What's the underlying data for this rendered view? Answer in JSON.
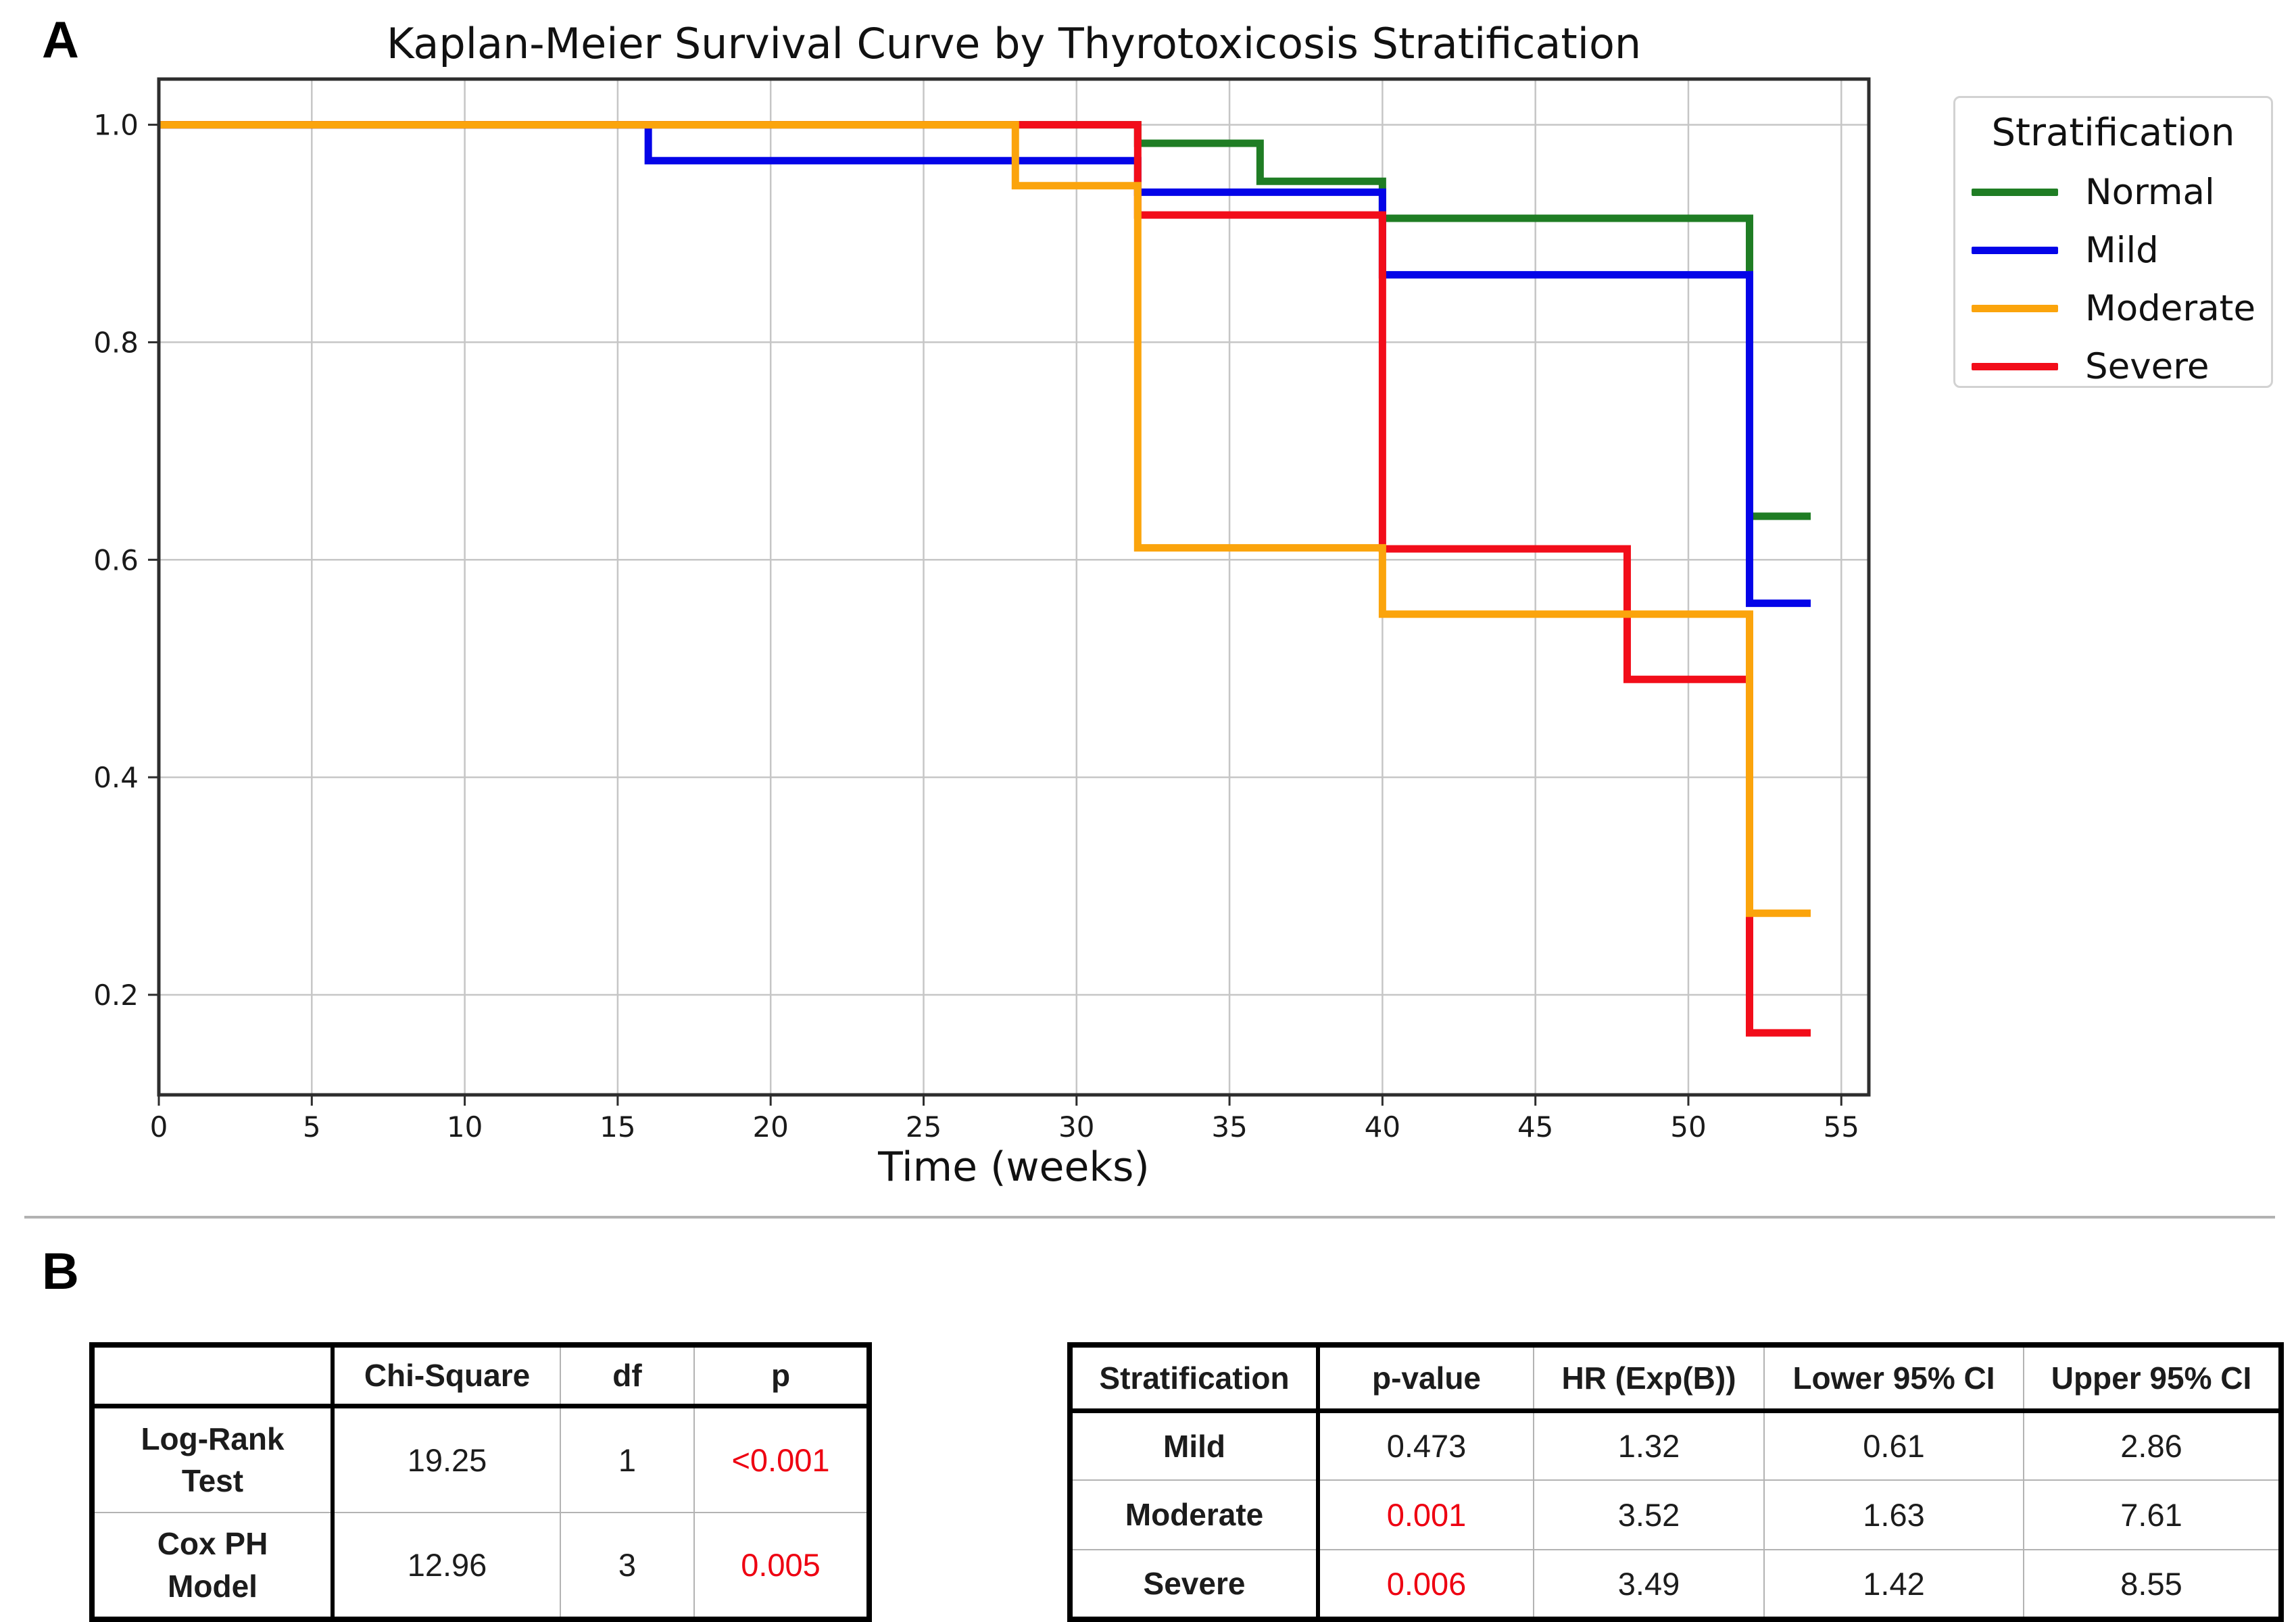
{
  "panel_a": {
    "label": "A"
  },
  "panel_b": {
    "label": "B"
  },
  "chart_data": {
    "type": "line",
    "step": true,
    "title": "Kaplan-Meier Survival Curve by Thyrotoxicosis Stratification",
    "xlabel": "Time (weeks)",
    "ylabel": "",
    "xlim": [
      0,
      55.9
    ],
    "ylim": [
      0.108,
      1.042
    ],
    "x_ticks": [
      0,
      5,
      10,
      15,
      20,
      25,
      30,
      35,
      40,
      45,
      50,
      55
    ],
    "y_ticks": [
      {
        "v": 1.0,
        "label": "1.0"
      },
      {
        "v": 0.8,
        "label": "0.8"
      },
      {
        "v": 0.6,
        "label": "0.6"
      },
      {
        "v": 0.4,
        "label": "0.4"
      },
      {
        "v": 0.2,
        "label": "0.2"
      }
    ],
    "grid": true,
    "legend": {
      "title": "Stratification",
      "position": "upper-right-outside"
    },
    "series": [
      {
        "name": "Normal",
        "color": "#1f7d24",
        "steps": [
          [
            0,
            1.0
          ],
          [
            32,
            0.983
          ],
          [
            36,
            0.948
          ],
          [
            40,
            0.914
          ],
          [
            52,
            0.64
          ]
        ],
        "end_x": 54
      },
      {
        "name": "Mild",
        "color": "#0404e8",
        "steps": [
          [
            0,
            1.0
          ],
          [
            16,
            0.967
          ],
          [
            32,
            0.938
          ],
          [
            40,
            0.862
          ],
          [
            52,
            0.56
          ]
        ],
        "end_x": 54
      },
      {
        "name": "Moderate",
        "color": "#fba40c",
        "steps": [
          [
            0,
            1.0
          ],
          [
            28,
            0.944
          ],
          [
            32,
            0.611
          ],
          [
            40,
            0.55
          ],
          [
            52,
            0.275
          ]
        ],
        "end_x": 54
      },
      {
        "name": "Severe",
        "color": "#f20d1a",
        "steps": [
          [
            0,
            1.0
          ],
          [
            32,
            0.917
          ],
          [
            40,
            0.61
          ],
          [
            48,
            0.49
          ],
          [
            52,
            0.165
          ]
        ],
        "end_x": 54
      }
    ],
    "draw_order": [
      0,
      1,
      3,
      2
    ]
  },
  "stats_table": {
    "headers": [
      "",
      "Chi-Square",
      "df",
      "p"
    ],
    "rows": [
      {
        "label": "Log-Rank\nTest",
        "chi_square": "19.25",
        "df": "1",
        "p": "<0.001",
        "p_color": "#ee0011"
      },
      {
        "label": "Cox PH\nModel",
        "chi_square": "12.96",
        "df": "3",
        "p": "0.005",
        "p_color": "#ee0011"
      }
    ]
  },
  "cox_table": {
    "headers": [
      "Stratification",
      "p-value",
      "HR (Exp(B))",
      "Lower 95% CI",
      "Upper 95% CI"
    ],
    "rows": [
      {
        "label": "Mild",
        "p_value": "0.473",
        "hr": "1.32",
        "lower": "0.61",
        "upper": "2.86",
        "p_color": "#1c1c1c"
      },
      {
        "label": "Moderate",
        "p_value": "0.001",
        "hr": "3.52",
        "lower": "1.63",
        "upper": "7.61",
        "p_color": "#ee0011"
      },
      {
        "label": "Severe",
        "p_value": "0.006",
        "hr": "3.49",
        "lower": "1.42",
        "upper": "8.55",
        "p_color": "#ee0011"
      }
    ]
  }
}
